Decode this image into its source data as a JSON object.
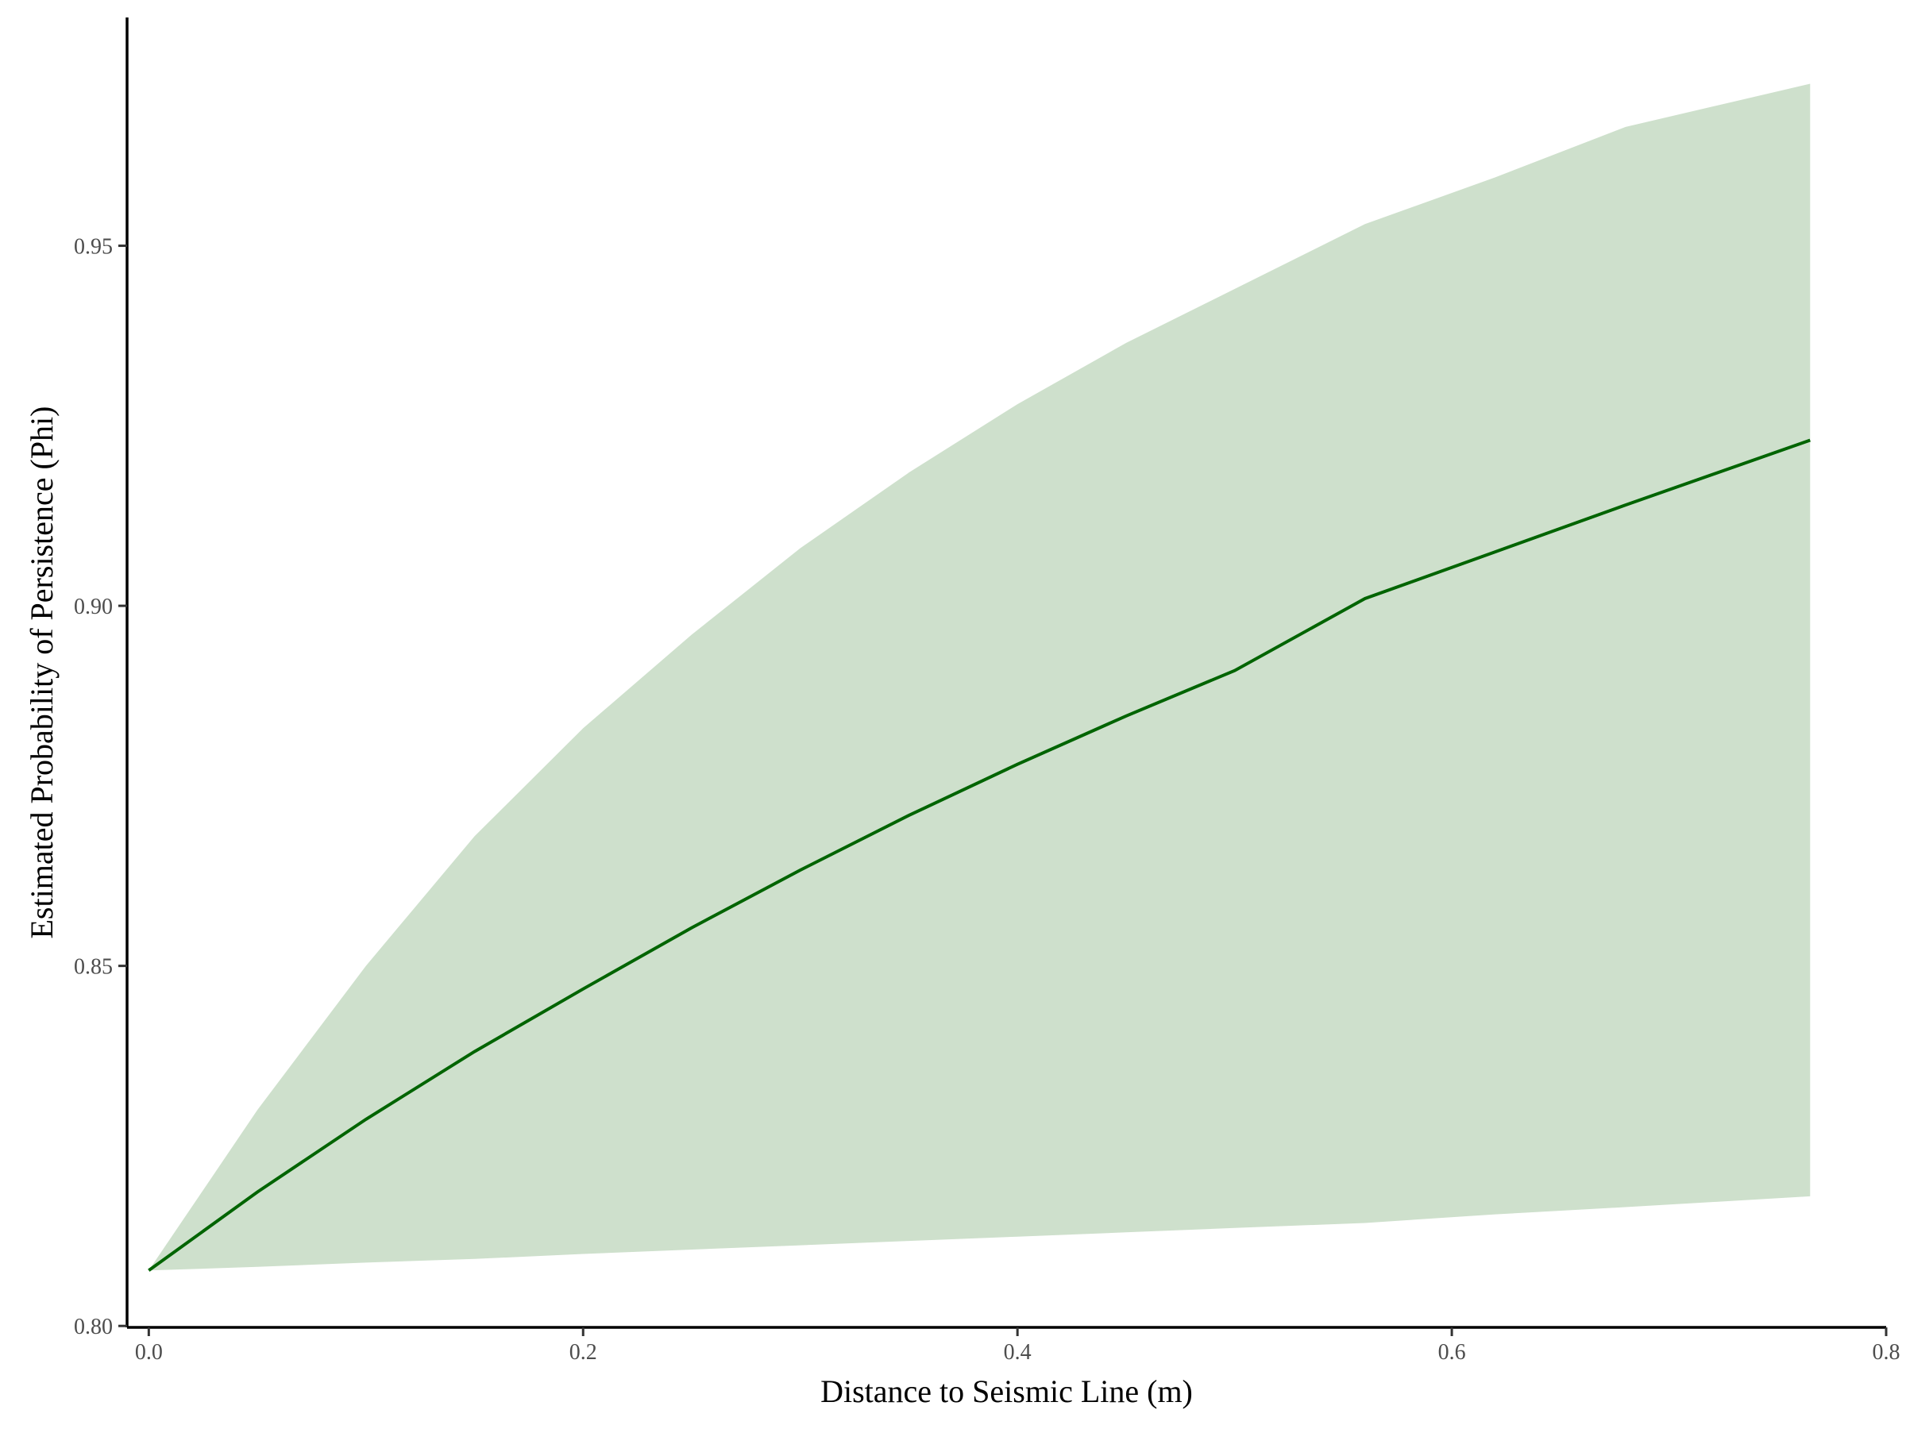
{
  "chart_data": {
    "type": "line",
    "title": "",
    "xlabel": "Distance to Seismic Line (m)",
    "ylabel": "Estimated Probability of Persistence (Phi)",
    "xlim": [
      -0.01,
      0.8
    ],
    "ylim": [
      0.7998,
      0.9817
    ],
    "x_ticks": [
      0.0,
      0.2,
      0.4,
      0.6,
      0.8
    ],
    "x_tick_labels": [
      "0.0",
      "0.2",
      "0.4",
      "0.6",
      "0.8"
    ],
    "y_ticks": [
      0.8,
      0.85,
      0.9,
      0.95
    ],
    "y_tick_labels": [
      "0.80",
      "0.85",
      "0.90",
      "0.95"
    ],
    "grid": false,
    "legend": "none",
    "series": [
      {
        "x": [
          0.0,
          0.05,
          0.1,
          0.15,
          0.2,
          0.25,
          0.3,
          0.35,
          0.4,
          0.45,
          0.5,
          0.56,
          0.62,
          0.68,
          0.765
        ],
        "y": [
          0.8077,
          0.8186,
          0.8287,
          0.8381,
          0.8468,
          0.8553,
          0.8633,
          0.8709,
          0.878,
          0.8847,
          0.891,
          0.901,
          0.9075,
          0.914,
          0.923
        ],
        "lower": [
          0.8077,
          0.8082,
          0.8088,
          0.8093,
          0.81,
          0.8106,
          0.8112,
          0.8118,
          0.8124,
          0.813,
          0.8136,
          0.8143,
          0.8155,
          0.8165,
          0.818
        ],
        "upper": [
          0.8077,
          0.83,
          0.85,
          0.868,
          0.883,
          0.896,
          0.908,
          0.9185,
          0.928,
          0.9365,
          0.944,
          0.953,
          0.9595,
          0.9665,
          0.9725
        ],
        "line_color": "#006400",
        "band_color": "#cee0cc"
      }
    ]
  }
}
